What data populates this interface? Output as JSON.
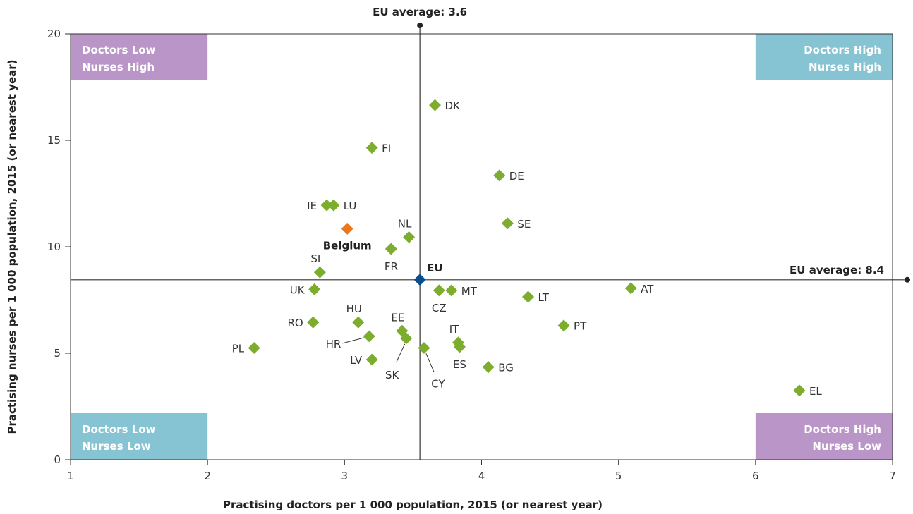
{
  "chart_data": {
    "type": "scatter",
    "xlabel": "Practising doctors per 1 000 population, 2015 (or nearest year)",
    "ylabel": "Practising nurses per 1 000 population, 2015 (or nearest year)",
    "xlim": [
      1,
      7
    ],
    "ylim": [
      0,
      20
    ],
    "xticks": [
      "1",
      "2",
      "3",
      "4",
      "5",
      "6",
      "7"
    ],
    "yticks": [
      "0",
      "5",
      "10",
      "15",
      "20"
    ],
    "colors": {
      "countries": "#7cad2d",
      "highlight": "#e8771e",
      "eu": "#0b4f8a",
      "quadrant_purple": "#b996c7",
      "quadrant_teal": "#86c4d3",
      "lines": "#333333"
    },
    "eu_average_x": {
      "value": 3.55,
      "label": "EU average: 3.6"
    },
    "eu_average_y": {
      "value": 8.45,
      "label": "EU average: 8.4"
    },
    "quadrants": [
      {
        "line1": "Doctors Low",
        "line2": "Nurses High",
        "corner": "top-left",
        "color": "#b996c7"
      },
      {
        "line1": "Doctors High",
        "line2": "Nurses High",
        "corner": "top-right",
        "color": "#86c4d3"
      },
      {
        "line1": "Doctors Low",
        "line2": "Nurses Low",
        "corner": "bottom-left",
        "color": "#86c4d3"
      },
      {
        "line1": "Doctors High",
        "line2": "Nurses Low",
        "corner": "bottom-right",
        "color": "#b996c7"
      }
    ],
    "points": [
      {
        "label": "DK",
        "x": 3.66,
        "y": 16.65,
        "pos": "right",
        "kind": "country"
      },
      {
        "label": "FI",
        "x": 3.2,
        "y": 14.65,
        "pos": "right",
        "kind": "country"
      },
      {
        "label": "DE",
        "x": 4.13,
        "y": 13.35,
        "pos": "right",
        "kind": "country"
      },
      {
        "label": "IE",
        "x": 2.87,
        "y": 11.95,
        "pos": "left",
        "kind": "country"
      },
      {
        "label": "LU",
        "x": 2.92,
        "y": 11.95,
        "pos": "right",
        "kind": "country"
      },
      {
        "label": "SE",
        "x": 4.19,
        "y": 11.1,
        "pos": "right",
        "kind": "country"
      },
      {
        "label": "Belgium",
        "x": 3.02,
        "y": 10.85,
        "pos": "below-left",
        "kind": "highlight"
      },
      {
        "label": "NL",
        "x": 3.47,
        "y": 10.45,
        "pos": "above",
        "kind": "country"
      },
      {
        "label": "FR",
        "x": 3.34,
        "y": 9.9,
        "pos": "below",
        "kind": "country"
      },
      {
        "label": "SI",
        "x": 2.82,
        "y": 8.8,
        "pos": "above",
        "kind": "country"
      },
      {
        "label": "EU",
        "x": 3.55,
        "y": 8.45,
        "pos": "above-right",
        "kind": "eu"
      },
      {
        "label": "AT",
        "x": 5.09,
        "y": 8.05,
        "pos": "right",
        "kind": "country"
      },
      {
        "label": "UK",
        "x": 2.78,
        "y": 8.0,
        "pos": "left",
        "kind": "country"
      },
      {
        "label": "CZ",
        "x": 3.69,
        "y": 7.95,
        "pos": "below",
        "kind": "country"
      },
      {
        "label": "MT",
        "x": 3.78,
        "y": 7.95,
        "pos": "right",
        "kind": "country"
      },
      {
        "label": "LT",
        "x": 4.34,
        "y": 7.65,
        "pos": "right",
        "kind": "country"
      },
      {
        "label": "HU",
        "x": 3.1,
        "y": 6.45,
        "pos": "above",
        "kind": "country"
      },
      {
        "label": "RO",
        "x": 2.77,
        "y": 6.45,
        "pos": "left",
        "kind": "country"
      },
      {
        "label": "PT",
        "x": 4.6,
        "y": 6.3,
        "pos": "right",
        "kind": "country"
      },
      {
        "label": "EE",
        "x": 3.42,
        "y": 6.05,
        "pos": "above",
        "kind": "country"
      },
      {
        "label": "HR",
        "x": 3.18,
        "y": 5.8,
        "pos": "leader-hr",
        "kind": "country"
      },
      {
        "label": "SK",
        "x": 3.45,
        "y": 5.7,
        "pos": "leader-sk",
        "kind": "country"
      },
      {
        "label": "IT",
        "x": 3.83,
        "y": 5.5,
        "pos": "above",
        "kind": "country"
      },
      {
        "label": "ES",
        "x": 3.84,
        "y": 5.3,
        "pos": "below",
        "kind": "country"
      },
      {
        "label": "PL",
        "x": 2.34,
        "y": 5.25,
        "pos": "left",
        "kind": "country"
      },
      {
        "label": "CY",
        "x": 3.58,
        "y": 5.25,
        "pos": "leader-cy",
        "kind": "country"
      },
      {
        "label": "LV",
        "x": 3.2,
        "y": 4.7,
        "pos": "left",
        "kind": "country"
      },
      {
        "label": "BG",
        "x": 4.05,
        "y": 4.35,
        "pos": "right",
        "kind": "country"
      },
      {
        "label": "EL",
        "x": 6.32,
        "y": 3.25,
        "pos": "right",
        "kind": "country"
      }
    ]
  }
}
